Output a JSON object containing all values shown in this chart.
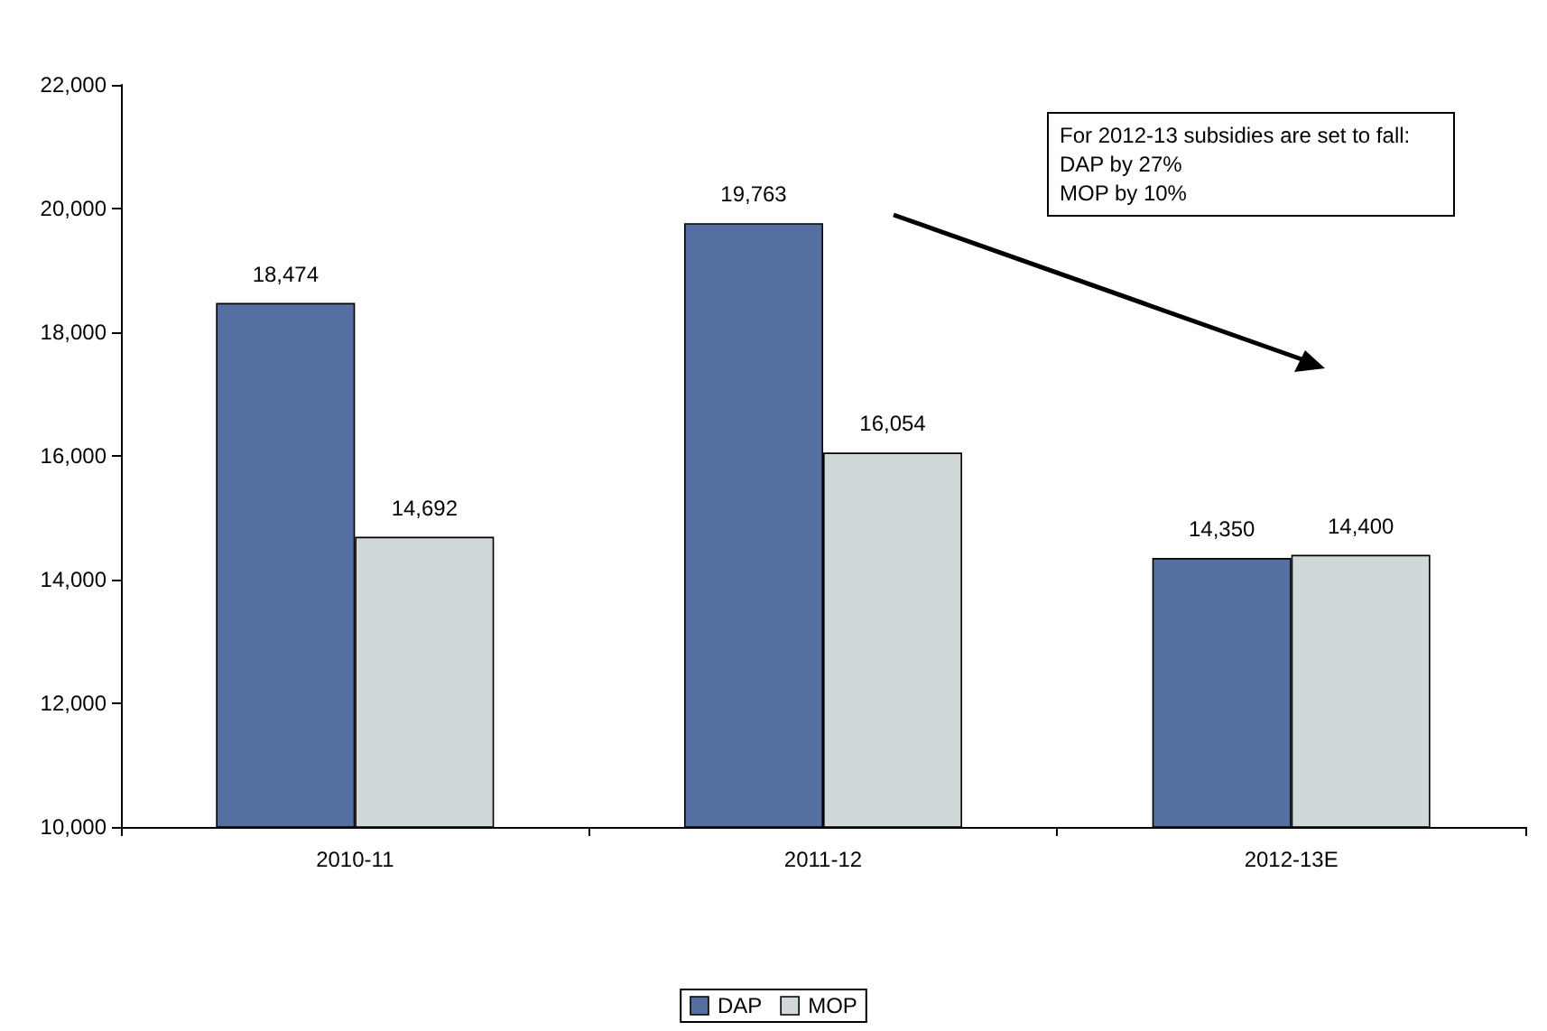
{
  "chart_data": {
    "type": "bar",
    "categories": [
      "2010-11",
      "2011-12",
      "2012-13E"
    ],
    "series": [
      {
        "name": "DAP",
        "color": "#5470a2",
        "values": [
          18474,
          19763,
          14350
        ],
        "value_labels": [
          "18,474",
          "19,763",
          "14,350"
        ]
      },
      {
        "name": "MOP",
        "color": "#d0d8da",
        "values": [
          14692,
          16054,
          14400
        ],
        "value_labels": [
          "14,692",
          "16,054",
          "14,400"
        ]
      }
    ],
    "ylim": [
      10000,
      22000
    ],
    "yticks": [
      {
        "value": 10000,
        "label": "10,000"
      },
      {
        "value": 12000,
        "label": "12,000"
      },
      {
        "value": 14000,
        "label": "14,000"
      },
      {
        "value": 16000,
        "label": "16,000"
      },
      {
        "value": 18000,
        "label": "18,000"
      },
      {
        "value": 20000,
        "label": "20,000"
      },
      {
        "value": 22000,
        "label": "22,000"
      }
    ],
    "grid": false,
    "legend": "bottom",
    "annotations": [
      "For 2012-13 subsidies are set to fall:\nDAP by 27%\nMOP by 10%"
    ]
  }
}
